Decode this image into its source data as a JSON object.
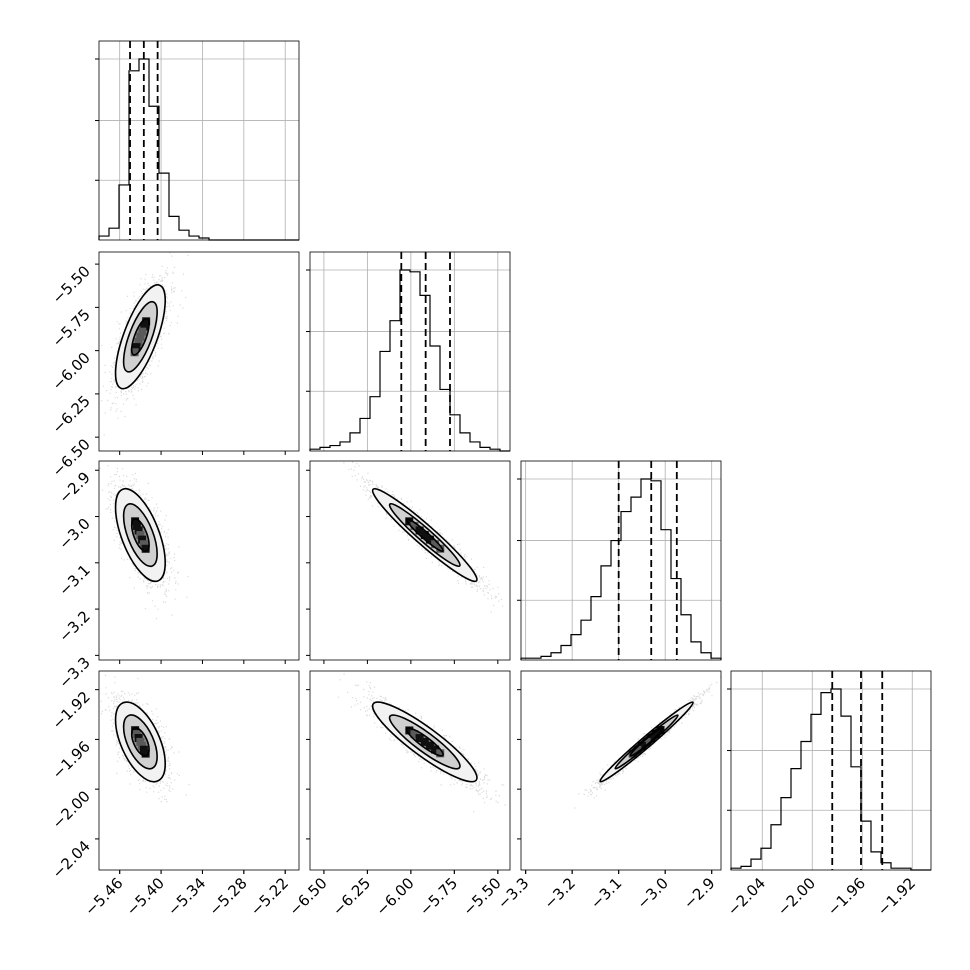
{
  "chart_data": {
    "type": "corner",
    "title": "",
    "grid": true,
    "parameters": [
      {
        "range": [
          -5.49,
          -5.2
        ],
        "ticks": [
          -5.46,
          -5.4,
          -5.34,
          -5.28,
          -5.22
        ],
        "tick_labels": [
          "−5.46",
          "−5.40",
          "−5.34",
          "−5.28",
          "−5.22"
        ]
      },
      {
        "range": [
          -6.58,
          -5.43
        ],
        "ticks": [
          -6.5,
          -6.25,
          -6.0,
          -5.75,
          -5.5
        ],
        "tick_labels": [
          "−6.50",
          "−6.25",
          "−6.00",
          "−5.75",
          "−5.50"
        ]
      },
      {
        "range": [
          -3.31,
          -2.88
        ],
        "ticks": [
          -3.3,
          -3.2,
          -3.1,
          -3.0,
          -2.9
        ],
        "tick_labels": [
          "−3.3",
          "−3.2",
          "−3.1",
          "−3.0",
          "−2.9"
        ]
      },
      {
        "range": [
          -2.065,
          -1.905
        ],
        "ticks": [
          -2.04,
          -2.0,
          -1.96,
          -1.92
        ],
        "tick_labels": [
          "−2.04",
          "−2.00",
          "−1.96",
          "−1.92"
        ]
      }
    ],
    "histograms": [
      {
        "param": 0,
        "edges_range": [
          -5.49,
          -5.2
        ],
        "counts": [
          2,
          6,
          28,
          86,
          92,
          68,
          34,
          12,
          5,
          2,
          1,
          0,
          0,
          0,
          0,
          0,
          0,
          0,
          0,
          0
        ],
        "quantiles": [
          -5.445,
          -5.425,
          -5.405
        ]
      },
      {
        "param": 1,
        "edges_range": [
          -6.58,
          -5.43
        ],
        "counts": [
          1,
          2,
          3,
          5,
          10,
          18,
          30,
          55,
          72,
          100,
          99,
          86,
          58,
          34,
          20,
          10,
          5,
          2,
          1,
          0
        ],
        "quantiles": [
          -6.055,
          -5.915,
          -5.775
        ]
      },
      {
        "param": 2,
        "edges_range": [
          -3.31,
          -2.88
        ],
        "counts": [
          1,
          1,
          2,
          4,
          8,
          14,
          22,
          35,
          52,
          66,
          82,
          90,
          100,
          99,
          72,
          45,
          25,
          10,
          4,
          1
        ],
        "quantiles": [
          -3.1,
          -3.03,
          -2.975
        ]
      },
      {
        "param": 3,
        "edges_range": [
          -2.065,
          -1.905
        ],
        "counts": [
          1,
          2,
          6,
          12,
          25,
          40,
          56,
          71,
          86,
          98,
          100,
          85,
          57,
          27,
          10,
          4,
          1,
          1,
          0,
          0
        ],
        "quantiles": [
          -1.984,
          -1.961,
          -1.944
        ]
      }
    ],
    "pair_densities": [
      {
        "x_param": 0,
        "y_param": 1,
        "correlation": 0.7,
        "mean": [
          -5.43,
          -5.92
        ],
        "sd": [
          0.018,
          0.15
        ]
      },
      {
        "x_param": 0,
        "y_param": 2,
        "correlation": -0.6,
        "mean": [
          -5.43,
          -3.04
        ],
        "sd": [
          0.018,
          0.05
        ]
      },
      {
        "x_param": 1,
        "y_param": 2,
        "correlation": -0.96,
        "mean": [
          -5.92,
          -3.04
        ],
        "sd": [
          0.15,
          0.05
        ]
      },
      {
        "x_param": 0,
        "y_param": 3,
        "correlation": -0.55,
        "mean": [
          -5.43,
          -1.962
        ],
        "sd": [
          0.018,
          0.016
        ]
      },
      {
        "x_param": 1,
        "y_param": 3,
        "correlation": -0.9,
        "mean": [
          -5.92,
          -1.962
        ],
        "sd": [
          0.15,
          0.016
        ]
      },
      {
        "x_param": 2,
        "y_param": 3,
        "correlation": 0.985,
        "mean": [
          -3.04,
          -1.962
        ],
        "sd": [
          0.05,
          0.016
        ]
      }
    ],
    "colors": {
      "points": "#000000",
      "lines": "#000000",
      "grid": "#b0b0b0",
      "background": "#ffffff"
    }
  }
}
